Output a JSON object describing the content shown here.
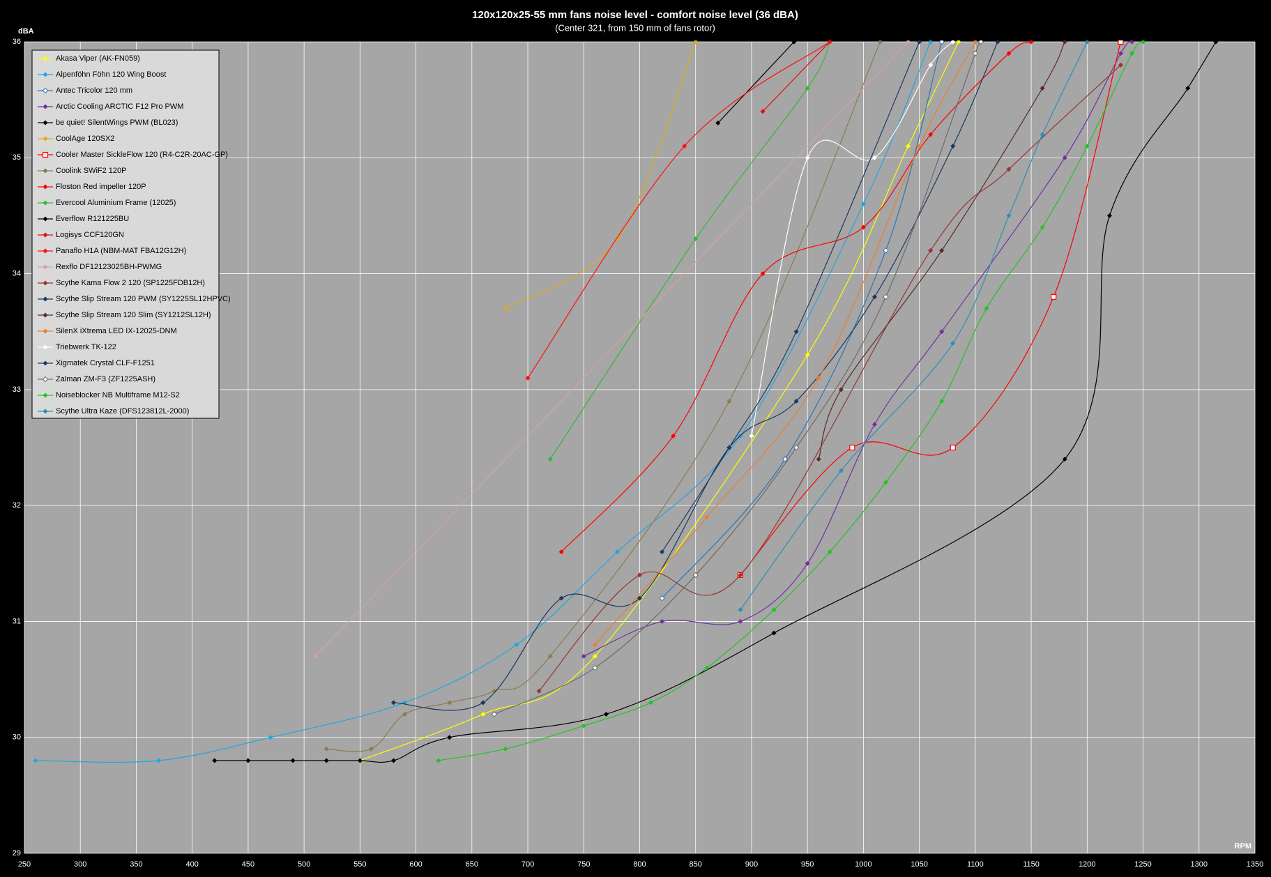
{
  "chart_data": {
    "type": "line",
    "title": "120x120x25-55 mm fans noise level - comfort noise level (36 dBA)",
    "subtitle": "(Center 321, from 150 mm of fans rotor)",
    "y_label": "dBA",
    "x_label": "RPM",
    "xlim": [
      250,
      1350
    ],
    "xticks": [
      250,
      300,
      350,
      400,
      450,
      500,
      550,
      600,
      650,
      700,
      750,
      800,
      850,
      900,
      950,
      1000,
      1050,
      1100,
      1150,
      1200,
      1250,
      1300,
      1350
    ],
    "ylim": [
      29,
      36
    ],
    "yticks": [
      29,
      30,
      31,
      32,
      33,
      34,
      35,
      36
    ],
    "grid": true,
    "legend": "top-left",
    "series": [
      {
        "name": "Akasa Viper (AK-FN059)",
        "color": "#ffff00",
        "marker": "diamond",
        "x": [
          550,
          660,
          760,
          950,
          1040,
          1085
        ],
        "values": [
          29.8,
          30.2,
          30.7,
          33.3,
          35.1,
          36
        ]
      },
      {
        "name": "Alpenföhn Föhn 120 Wing Boost",
        "color": "#1ea7e1",
        "marker": "diamond",
        "x": [
          260,
          370,
          470,
          590,
          690,
          780,
          890,
          1000,
          1060
        ],
        "values": [
          29.8,
          29.8,
          30.0,
          30.3,
          30.8,
          31.6,
          32.6,
          34.6,
          36
        ]
      },
      {
        "name": "Antec Tricolor 120 mm",
        "color": "#2e75b6",
        "marker": "open-diamond",
        "x": [
          820,
          930,
          1020,
          1070
        ],
        "values": [
          31.2,
          32.4,
          34.2,
          36
        ]
      },
      {
        "name": "Arctic Cooling ARCTIC F12 Pro PWM",
        "color": "#7030a0",
        "marker": "diamond",
        "x": [
          750,
          820,
          890,
          950,
          1010,
          1070,
          1180,
          1230,
          1240
        ],
        "values": [
          30.7,
          31.0,
          31.0,
          31.5,
          32.7,
          33.5,
          35.0,
          35.9,
          36
        ]
      },
      {
        "name": "be quiet! SilentWings PWM (BL023)",
        "color": "#000000",
        "marker": "diamond",
        "x": [
          420,
          450,
          490,
          520,
          550,
          580,
          630,
          770,
          920,
          1180,
          1220,
          1290,
          1315
        ],
        "values": [
          29.8,
          29.8,
          29.8,
          29.8,
          29.8,
          29.8,
          30.0,
          30.2,
          30.9,
          32.4,
          34.5,
          35.6,
          36
        ]
      },
      {
        "name": "CoolAge 120SX2",
        "color": "#e6a817",
        "marker": "diamond",
        "x": [
          680,
          780,
          850
        ],
        "values": [
          33.7,
          34.3,
          36
        ]
      },
      {
        "name": "Cooler Master SickleFlow 120 (R4-C2R-20AC-GP)",
        "color": "#ff0000",
        "marker": "open-square",
        "x": [
          890,
          990,
          1080,
          1170,
          1230
        ],
        "values": [
          31.4,
          32.5,
          32.5,
          33.8,
          36
        ]
      },
      {
        "name": "Coolink SWiF2 120P",
        "color": "#8c7b4f",
        "marker": "diamond",
        "x": [
          520,
          560,
          590,
          630,
          670,
          720,
          880,
          1015
        ],
        "values": [
          29.9,
          29.9,
          30.2,
          30.3,
          30.4,
          30.7,
          32.9,
          36
        ]
      },
      {
        "name": "Floston Red impeller 120P",
        "color": "#ff0000",
        "marker": "diamond",
        "x": [
          730,
          830,
          910,
          1000,
          1060,
          1130,
          1150
        ],
        "values": [
          31.6,
          32.6,
          34.0,
          34.4,
          35.2,
          35.9,
          36
        ]
      },
      {
        "name": "Evercool Aluminium Frame (12025)",
        "color": "#33b833",
        "marker": "diamond",
        "x": [
          720,
          850,
          950,
          970
        ],
        "values": [
          32.4,
          34.3,
          35.6,
          36
        ]
      },
      {
        "name": "Everflow R121225BU",
        "color": "#000000",
        "marker": "diamond",
        "x": [
          870,
          938
        ],
        "values": [
          35.3,
          36
        ]
      },
      {
        "name": "Logisys CCF120GN",
        "color": "#e01010",
        "marker": "diamond",
        "x": [
          910,
          970
        ],
        "values": [
          35.4,
          36
        ]
      },
      {
        "name": "Panaflo H1A (NBM-MAT FBA12G12H)",
        "color": "#ff1010",
        "marker": "diamond",
        "x": [
          700,
          840,
          970
        ],
        "values": [
          33.1,
          35.1,
          36
        ]
      },
      {
        "name": "Rexflo DF12123025BH-PWMG",
        "color": "#d9a0a0",
        "marker": "diamond",
        "x": [
          510,
          1040
        ],
        "values": [
          30.7,
          36
        ]
      },
      {
        "name": "Scythe Kama Flow 2 120 (SP1225FDB12H)",
        "color": "#993333",
        "marker": "diamond",
        "x": [
          710,
          800,
          890,
          1060,
          1130,
          1230
        ],
        "values": [
          30.4,
          31.4,
          31.4,
          34.2,
          34.9,
          35.8
        ]
      },
      {
        "name": "Scythe Slip Stream 120 PWM (SY1225SL12HPVC)",
        "color": "#17375e",
        "marker": "diamond",
        "x": [
          580,
          660,
          730,
          800,
          880,
          940,
          1010,
          1080,
          1120
        ],
        "values": [
          30.3,
          30.3,
          31.2,
          31.2,
          32.5,
          32.9,
          33.8,
          35.1,
          36
        ]
      },
      {
        "name": "Scythe Slip Stream 120 Slim (SY1212SL12H)",
        "color": "#5a2a2a",
        "marker": "diamond",
        "x": [
          960,
          980,
          1070,
          1160,
          1180
        ],
        "values": [
          32.4,
          33.0,
          34.2,
          35.6,
          36
        ]
      },
      {
        "name": "SilenX iXtrema LED IX-12025-DNM",
        "color": "#ed7d31",
        "marker": "diamond",
        "x": [
          760,
          860,
          960,
          1050,
          1100
        ],
        "values": [
          30.8,
          31.9,
          33.1,
          35.1,
          36
        ]
      },
      {
        "name": "Triebwerk TK-122",
        "color": "#ffffff",
        "marker": "diamond",
        "x": [
          900,
          950,
          1010,
          1060,
          1080
        ],
        "values": [
          32.6,
          35.0,
          35.0,
          35.8,
          36
        ]
      },
      {
        "name": "Xigmatek Crystal CLF-F1251",
        "color": "#1f3864",
        "marker": "diamond",
        "x": [
          820,
          880,
          940,
          1050
        ],
        "values": [
          31.6,
          32.5,
          33.5,
          36
        ]
      },
      {
        "name": "Zalman ZM-F3 (ZF1225ASH)",
        "color": "#6b6b6b",
        "marker": "open-diamond",
        "x": [
          670,
          760,
          850,
          940,
          1020,
          1100,
          1105
        ],
        "values": [
          30.2,
          30.6,
          31.4,
          32.5,
          33.8,
          35.9,
          36
        ]
      },
      {
        "name": "Noiseblocker NB Multiframe M12-S2",
        "color": "#22c322",
        "marker": "diamond",
        "x": [
          620,
          680,
          750,
          810,
          860,
          920,
          970,
          1020,
          1070,
          1110,
          1160,
          1200,
          1240,
          1250
        ],
        "values": [
          29.8,
          29.9,
          30.1,
          30.3,
          30.6,
          31.1,
          31.6,
          32.2,
          32.9,
          33.7,
          34.4,
          35.1,
          35.9,
          36
        ]
      },
      {
        "name": "Scythe Ultra Kaze (DFS123812L-2000)",
        "color": "#2a8fb5",
        "marker": "diamond",
        "x": [
          890,
          980,
          1080,
          1130,
          1160,
          1200
        ],
        "values": [
          31.1,
          32.3,
          33.4,
          34.5,
          35.2,
          36
        ]
      }
    ]
  }
}
